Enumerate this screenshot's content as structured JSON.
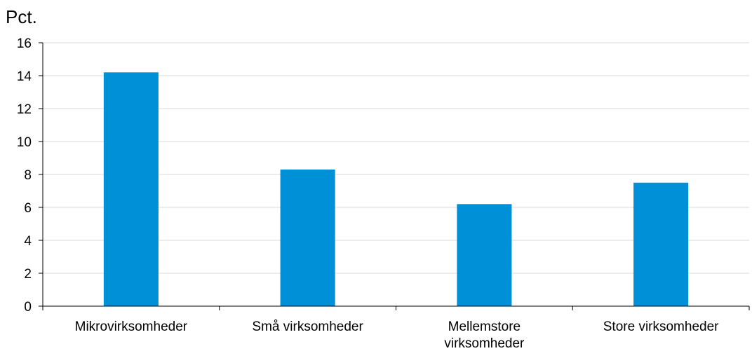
{
  "chart_data": {
    "type": "bar",
    "ylabel": "Pct.",
    "categories": [
      [
        "Mikrovirksomheder"
      ],
      [
        "Små virksomheder"
      ],
      [
        "Mellemstore",
        "virksomheder"
      ],
      [
        "Store virksomheder"
      ]
    ],
    "values": [
      14.2,
      8.3,
      6.2,
      7.5
    ],
    "ylim": [
      0,
      16
    ],
    "yticks": [
      "0",
      "2",
      "4",
      "6",
      "8",
      "10",
      "12",
      "14",
      "16"
    ],
    "grid": true,
    "colors": {
      "bar": "#0090d8",
      "grid": "#d9d9d9",
      "axis": "#000000"
    }
  }
}
